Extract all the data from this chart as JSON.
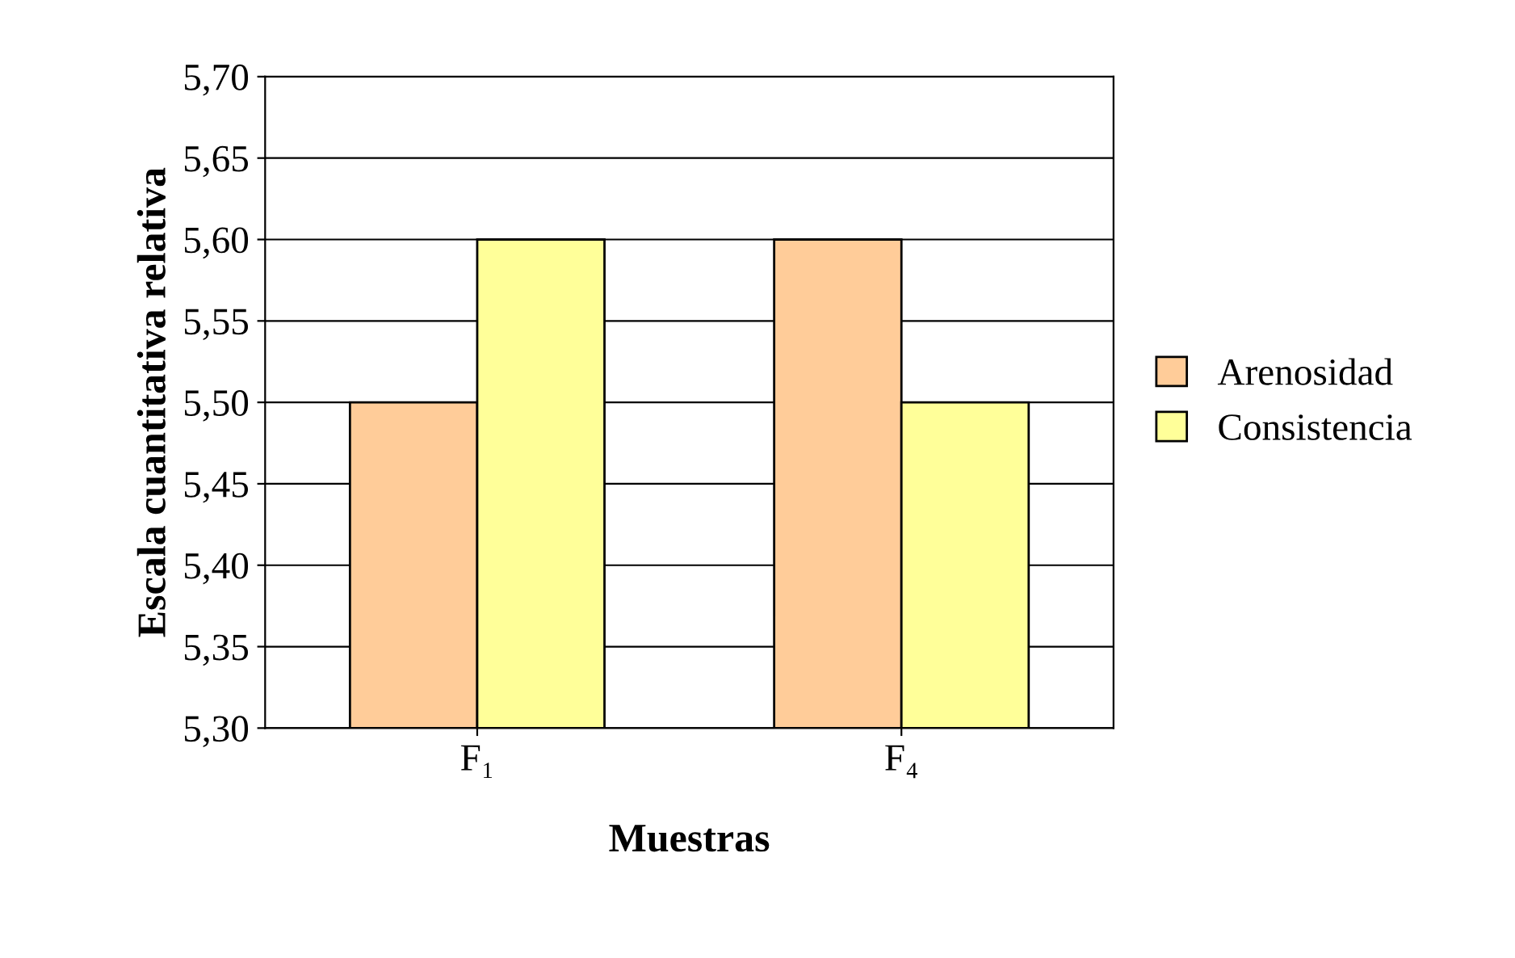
{
  "chart_data": {
    "type": "bar",
    "xlabel": "Muestras",
    "ylabel": "Escala cuantitativa relativa",
    "categories": [
      "F₁",
      "F₄"
    ],
    "series": [
      {
        "name": "Arenosidad",
        "color": "#ffcc99",
        "values": [
          5.5,
          5.6
        ]
      },
      {
        "name": "Consistencia",
        "color": "#ffff99",
        "values": [
          5.6,
          5.5
        ]
      }
    ],
    "ylim": [
      5.3,
      5.7
    ],
    "yticks": [
      {
        "value": 5.3,
        "label": "5,30"
      },
      {
        "value": 5.35,
        "label": "5,35"
      },
      {
        "value": 5.4,
        "label": "5,40"
      },
      {
        "value": 5.45,
        "label": "5,45"
      },
      {
        "value": 5.5,
        "label": "5,50"
      },
      {
        "value": 5.55,
        "label": "5,55"
      },
      {
        "value": 5.6,
        "label": "5,60"
      },
      {
        "value": 5.65,
        "label": "5,65"
      },
      {
        "value": 5.7,
        "label": "5,70"
      }
    ],
    "grid": "y",
    "legend": "right"
  }
}
